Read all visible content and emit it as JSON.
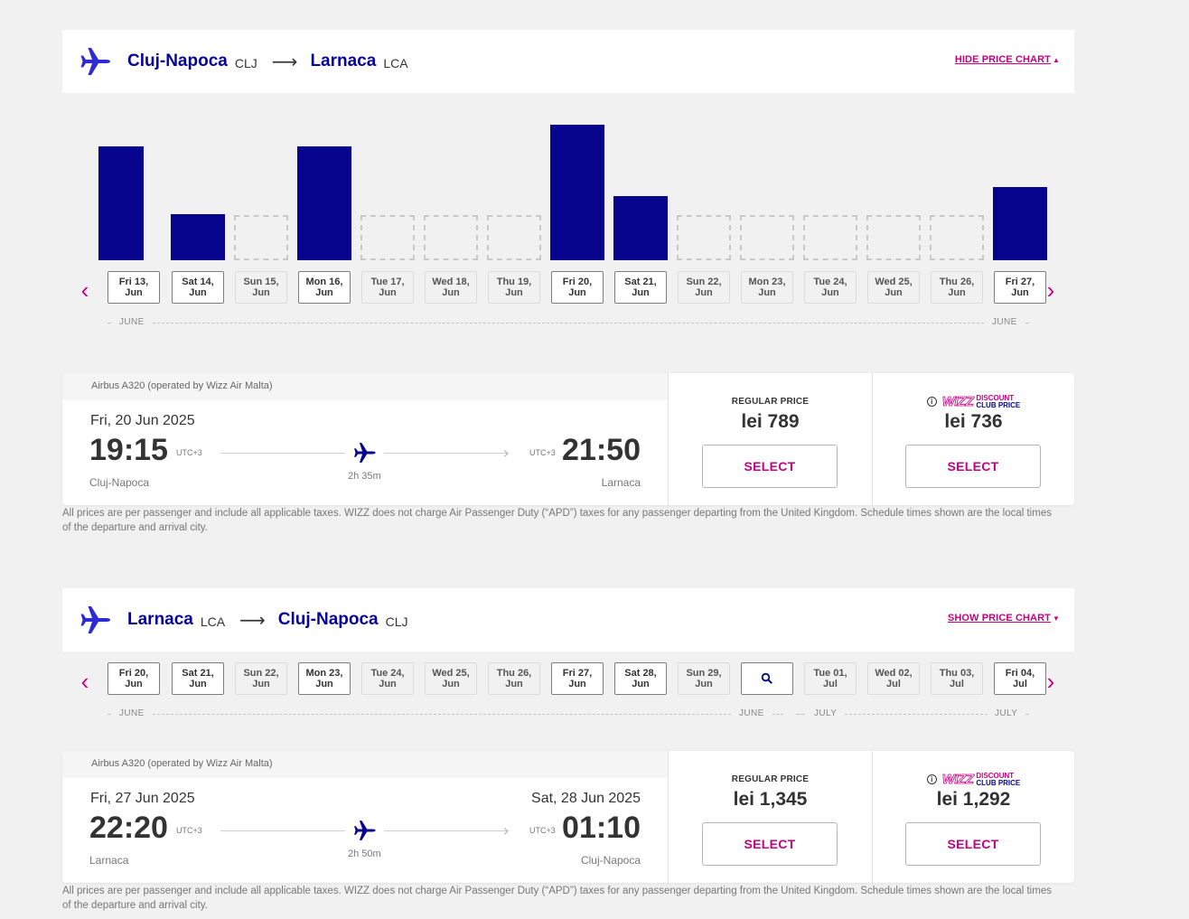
{
  "outbound": {
    "from_city": "Cluj-Napoca",
    "from_code": "CLJ",
    "to_city": "Larnaca",
    "to_code": "LCA",
    "chart_toggle": "HIDE PRICE CHART",
    "dates": [
      {
        "l1": "Fri 13,",
        "l2": "Jun",
        "available": true
      },
      {
        "l1": "Sat 14,",
        "l2": "Jun",
        "available": true
      },
      {
        "l1": "Sun 15,",
        "l2": "Jun",
        "available": false
      },
      {
        "l1": "Mon 16,",
        "l2": "Jun",
        "available": true
      },
      {
        "l1": "Tue 17,",
        "l2": "Jun",
        "available": false
      },
      {
        "l1": "Wed 18,",
        "l2": "Jun",
        "available": false
      },
      {
        "l1": "Thu 19,",
        "l2": "Jun",
        "available": false
      },
      {
        "l1": "Fri 20,",
        "l2": "Jun",
        "available": true
      },
      {
        "l1": "Sat 21,",
        "l2": "Jun",
        "available": true
      },
      {
        "l1": "Sun 22,",
        "l2": "Jun",
        "available": false
      },
      {
        "l1": "Mon 23,",
        "l2": "Jun",
        "available": false
      },
      {
        "l1": "Tue 24,",
        "l2": "Jun",
        "available": false
      },
      {
        "l1": "Wed 25,",
        "l2": "Jun",
        "available": false
      },
      {
        "l1": "Thu 26,",
        "l2": "Jun",
        "available": false
      },
      {
        "l1": "Fri 27,",
        "l2": "Jun",
        "available": true
      }
    ],
    "month_left": "JUNE",
    "month_right": "JUNE",
    "flight": {
      "aircraft": "Airbus A320 (operated by Wizz Air Malta)",
      "date": "Fri, 20 Jun 2025",
      "arr_date": "",
      "dep_time": "19:15",
      "arr_time": "21:50",
      "dep_utc": "UTC+3",
      "arr_utc": "UTC+3",
      "dep_city": "Cluj-Napoca",
      "arr_city": "Larnaca",
      "duration": "2h 35m",
      "regular_label": "REGULAR PRICE",
      "regular_price": "lei 789",
      "club_discount": "DISCOUNT",
      "club_price_label": "CLUB PRICE",
      "club_logo": "WIZZ",
      "club_price": "lei 736",
      "select_label": "SELECT"
    },
    "disclaimer": "All prices are per passenger and include all applicable taxes. WIZZ does not charge Air Passenger Duty (“APD”) taxes for any passenger departing from the United Kingdom. Schedule times shown are the local times of the departure and arrival city."
  },
  "chart_data": {
    "type": "bar",
    "categories": [
      "Fri 13, Jun",
      "Sat 14, Jun",
      "Sun 15, Jun",
      "Mon 16, Jun",
      "Tue 17, Jun",
      "Wed 18, Jun",
      "Thu 19, Jun",
      "Fri 20, Jun",
      "Sat 21, Jun",
      "Sun 22, Jun",
      "Mon 23, Jun",
      "Tue 24, Jun",
      "Wed 25, Jun",
      "Thu 26, Jun",
      "Fri 27, Jun"
    ],
    "values": [
      0.84,
      0.34,
      null,
      0.84,
      null,
      null,
      null,
      1.0,
      0.47,
      null,
      null,
      null,
      null,
      null,
      0.54
    ],
    "value_scale": "relative height (unlabeled)",
    "color": "#06048d",
    "no_flight_style": "dashed outline"
  },
  "inbound": {
    "from_city": "Larnaca",
    "from_code": "LCA",
    "to_city": "Cluj-Napoca",
    "to_code": "CLJ",
    "chart_toggle": "SHOW PRICE CHART",
    "dates": [
      {
        "l1": "Fri 20,",
        "l2": "Jun",
        "available": true
      },
      {
        "l1": "Sat 21,",
        "l2": "Jun",
        "available": true
      },
      {
        "l1": "Sun 22,",
        "l2": "Jun",
        "available": false
      },
      {
        "l1": "Mon 23,",
        "l2": "Jun",
        "available": true
      },
      {
        "l1": "Tue 24,",
        "l2": "Jun",
        "available": false
      },
      {
        "l1": "Wed 25,",
        "l2": "Jun",
        "available": false
      },
      {
        "l1": "Thu 26,",
        "l2": "Jun",
        "available": false
      },
      {
        "l1": "Fri 27,",
        "l2": "Jun",
        "available": true
      },
      {
        "l1": "Sat 28,",
        "l2": "Jun",
        "available": true
      },
      {
        "l1": "Sun 29,",
        "l2": "Jun",
        "available": false
      },
      {
        "l1": "",
        "l2": "",
        "available": true,
        "search": true
      },
      {
        "l1": "Tue 01,",
        "l2": "Jul",
        "available": false
      },
      {
        "l1": "Wed 02,",
        "l2": "Jul",
        "available": false
      },
      {
        "l1": "Thu 03,",
        "l2": "Jul",
        "available": false
      },
      {
        "l1": "Fri 04,",
        "l2": "Jul",
        "available": true
      }
    ],
    "month_labels": [
      "JUNE",
      "JUNE",
      "JULY",
      "JULY"
    ],
    "flight": {
      "aircraft": "Airbus A320 (operated by Wizz Air Malta)",
      "date": "Fri, 27 Jun 2025",
      "arr_date": "Sat, 28 Jun 2025",
      "dep_time": "22:20",
      "arr_time": "01:10",
      "dep_utc": "UTC+3",
      "arr_utc": "UTC+3",
      "dep_city": "Larnaca",
      "arr_city": "Cluj-Napoca",
      "duration": "2h 50m",
      "regular_label": "REGULAR PRICE",
      "regular_price": "lei 1,345",
      "club_discount": "DISCOUNT",
      "club_price_label": "CLUB PRICE",
      "club_logo": "WIZZ",
      "club_price": "lei 1,292",
      "select_label": "SELECT"
    },
    "disclaimer": "All prices are per passenger and include all applicable taxes. WIZZ does not charge Air Passenger Duty (“APD”) taxes for any passenger departing from the United Kingdom. Schedule times shown are the local times of the departure and arrival city."
  },
  "icons": {
    "plane": "plane-icon",
    "prev": "chevron-left-icon",
    "next": "chevron-right-icon",
    "search": "search-icon",
    "info": "info-icon"
  },
  "colors": {
    "brand_blue": "#06049a",
    "brand_pink": "#c6007e",
    "bar": "#06048d"
  }
}
